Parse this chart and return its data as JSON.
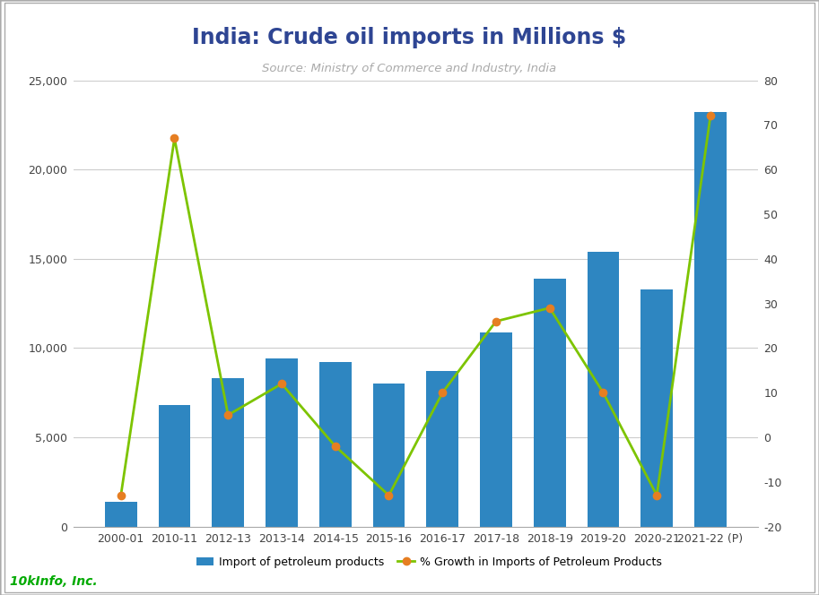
{
  "title": "India: Crude oil imports in Millions $",
  "subtitle": "Source: Ministry of Commerce and Industry, India",
  "categories": [
    "2000-01",
    "2010-11",
    "2012-13",
    "2013-14",
    "2014-15",
    "2015-16",
    "2016-17",
    "2017-18",
    "2018-19",
    "2019-20",
    "2020-21",
    "2021-22 (P)"
  ],
  "bar_values": [
    1400,
    6800,
    8300,
    9400,
    9200,
    8000,
    8700,
    10900,
    13900,
    15400,
    13300,
    23200
  ],
  "line_values": [
    -13,
    67,
    5,
    12,
    -2,
    -13,
    10,
    26,
    29,
    10,
    -13,
    72
  ],
  "bar_color": "#2E86C1",
  "line_color": "#7DC400",
  "marker_color": "#E67E22",
  "left_ylim": [
    0,
    25000
  ],
  "right_ylim": [
    -20,
    80
  ],
  "left_yticks": [
    0,
    5000,
    10000,
    15000,
    20000,
    25000
  ],
  "right_yticks": [
    -20,
    -10,
    0,
    10,
    20,
    30,
    40,
    50,
    60,
    70,
    80
  ],
  "legend_bar_label": "Import of petroleum products",
  "legend_line_label": "% Growth in Imports of Petroleum Products",
  "footer_text": "10kInfo, Inc.",
  "background_color": "#FFFFFF",
  "plot_bg_color": "#FFFFFF",
  "title_color": "#2E4593",
  "subtitle_color": "#AAAAAA",
  "footer_color": "#00AA00",
  "grid_color": "#CCCCCC",
  "border_color": "#AAAAAA"
}
